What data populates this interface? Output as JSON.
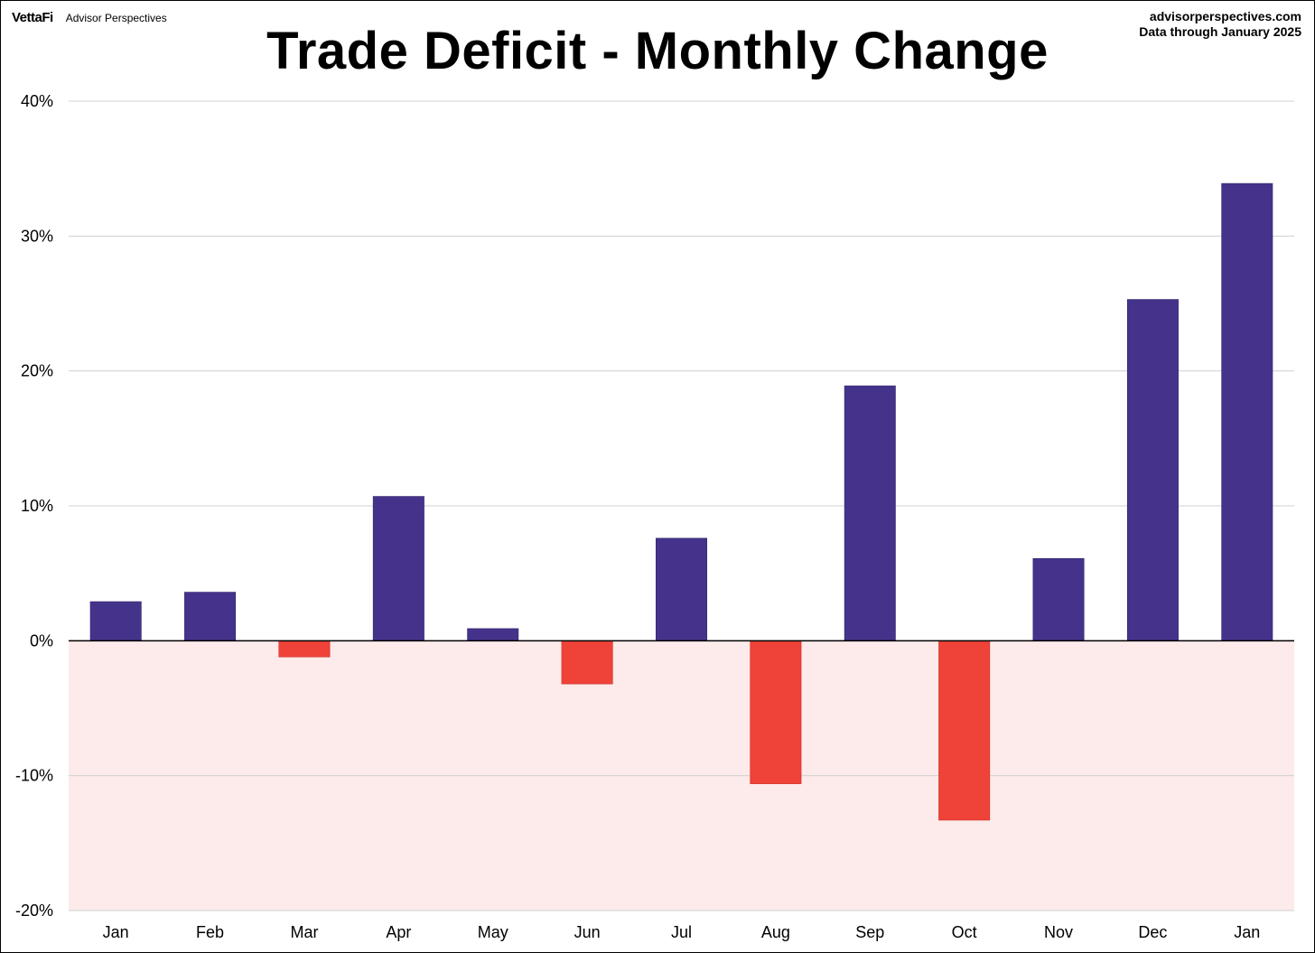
{
  "header": {
    "logo": "VettaFi",
    "brand_name": "Advisor Perspectives",
    "source_site": "advisorperspectives.com",
    "data_through": "Data through  January 2025"
  },
  "colors": {
    "positive": "#45338B",
    "negative": "#EF4238",
    "negative_band": "#FDEAEA",
    "grid": "#D0D0D0",
    "zero_line": "#000000"
  },
  "chart_data": {
    "type": "bar",
    "title": "Trade Deficit - Monthly Change",
    "xlabel": "",
    "ylabel": "",
    "categories": [
      "Jan",
      "Feb",
      "Mar",
      "Apr",
      "May",
      "Jun",
      "Jul",
      "Aug",
      "Sep",
      "Oct",
      "Nov",
      "Dec",
      "Jan"
    ],
    "values": [
      2.9,
      3.6,
      -1.2,
      10.7,
      0.9,
      -3.2,
      7.6,
      -10.6,
      18.9,
      -13.3,
      6.1,
      25.3,
      33.9
    ],
    "unit": "%",
    "ylim": [
      -20,
      40
    ],
    "yticks": [
      40,
      30,
      20,
      10,
      0,
      -10,
      -20
    ],
    "ytick_labels": [
      "40%",
      "30%",
      "20%",
      "10%",
      "0%",
      "-10%",
      "-20%"
    ],
    "grid": true,
    "shaded_region": "below zero",
    "legend": "none"
  }
}
